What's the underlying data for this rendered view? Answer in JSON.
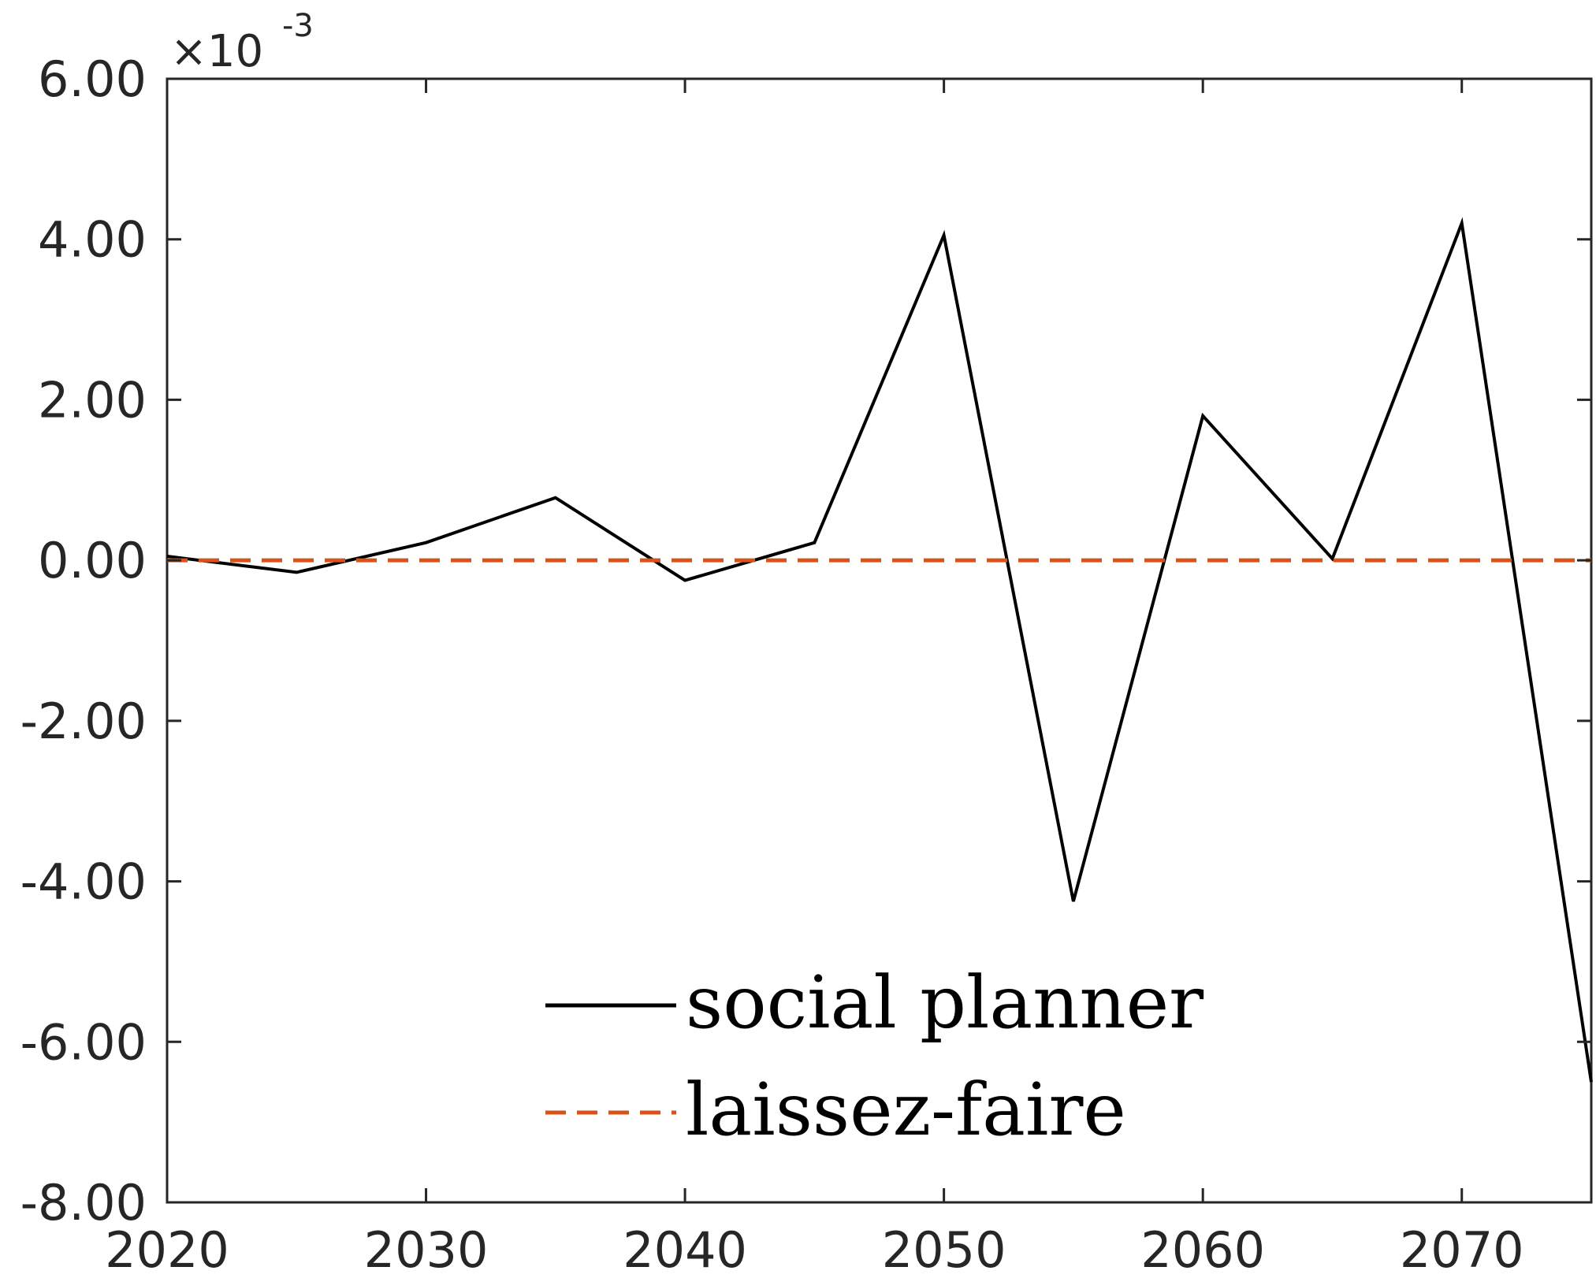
{
  "chart_data": {
    "type": "line",
    "title": "",
    "xlabel": "",
    "ylabel": "",
    "y_multiplier": {
      "base": "×10",
      "exponent": "-3"
    },
    "xlim": [
      2020,
      2075
    ],
    "ylim": [
      -8.0,
      6.0
    ],
    "x_ticks": [
      2020,
      2030,
      2040,
      2050,
      2060,
      2070
    ],
    "x_tick_labels": [
      "2020",
      "2030",
      "2040",
      "2050",
      "2060",
      "2070"
    ],
    "y_ticks": [
      6.0,
      4.0,
      2.0,
      0.0,
      -2.0,
      -4.0,
      -6.0,
      -8.0
    ],
    "y_tick_labels": [
      "6.00",
      "4.00",
      "2.00",
      "0.00",
      "-2.00",
      "-4.00",
      "-6.00",
      "-8.00"
    ],
    "grid": false,
    "legend_position": "bottom-center",
    "series": [
      {
        "name": "social planner",
        "color": "#000000",
        "style": "solid",
        "x": [
          2020,
          2025,
          2030,
          2035,
          2040,
          2045,
          2050,
          2055,
          2060,
          2065,
          2070,
          2075
        ],
        "y": [
          0.05,
          -0.15,
          0.22,
          0.78,
          -0.25,
          0.22,
          4.05,
          -4.25,
          1.8,
          0.02,
          4.2,
          -6.5
        ]
      },
      {
        "name": "laissez-faire",
        "color": "#D95319",
        "style": "dashed",
        "x": [
          2020,
          2075
        ],
        "y": [
          0.0,
          0.0
        ]
      }
    ]
  }
}
